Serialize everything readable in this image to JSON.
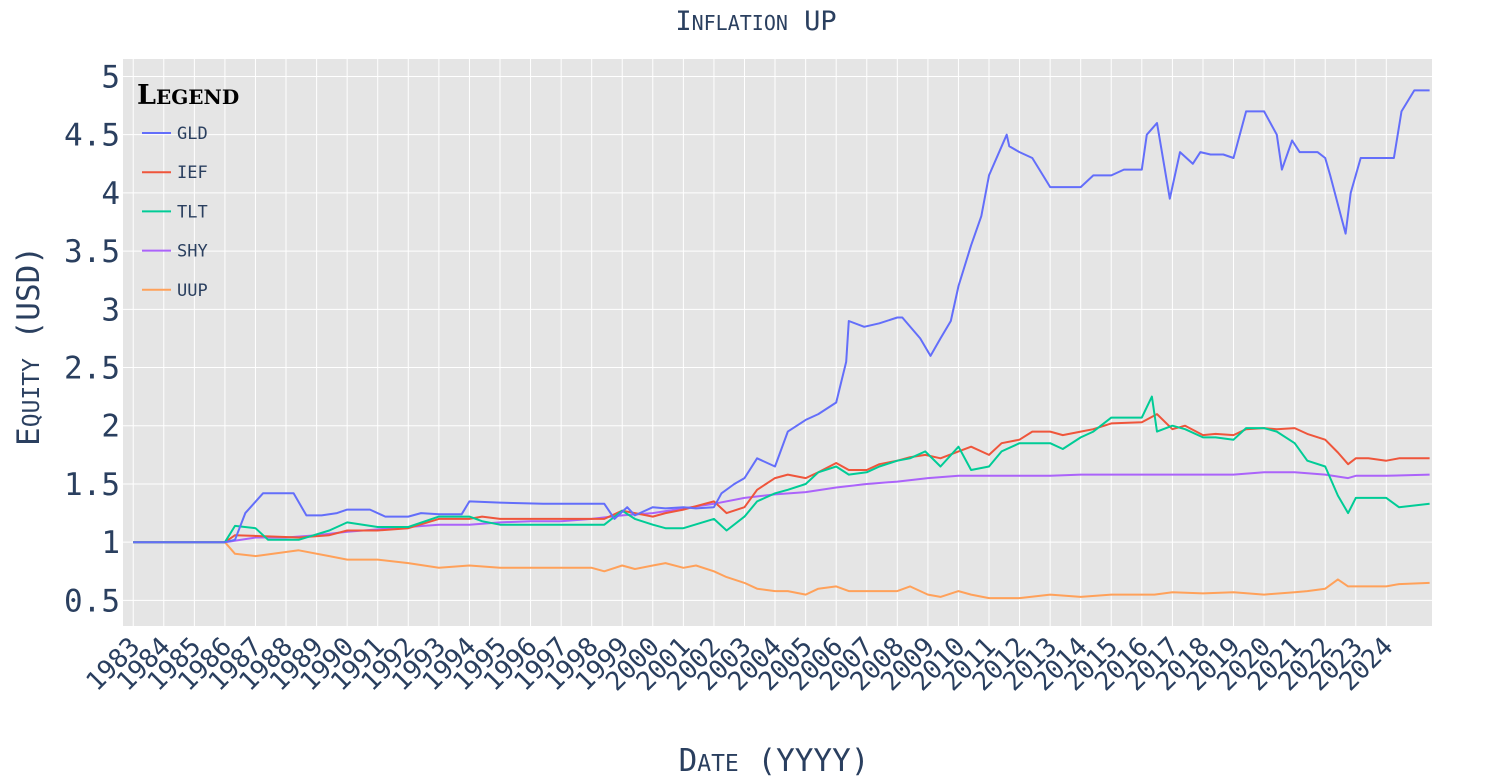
{
  "chart_data": {
    "type": "line",
    "title": "Inflation UP",
    "xlabel": "Date (YYYY)",
    "ylabel": "Equity (USD)",
    "legend_title": "Legend",
    "legend_position": "top-left",
    "grid": true,
    "xlim": [
      "1982-09-01",
      "2025-06-30"
    ],
    "ylim": [
      0.28,
      5.15
    ],
    "y_ticks": [
      "0.5",
      "1",
      "1.5",
      "2",
      "2.5",
      "3",
      "3.5",
      "4",
      "4.5",
      "5"
    ],
    "x_ticks": [
      "1983",
      "1984",
      "1985",
      "1986",
      "1987",
      "1988",
      "1989",
      "1990",
      "1991",
      "1992",
      "1993",
      "1994",
      "1995",
      "1996",
      "1997",
      "1998",
      "1999",
      "2000",
      "2001",
      "2002",
      "2003",
      "2004",
      "2005",
      "2006",
      "2007",
      "2008",
      "2009",
      "2010",
      "2011",
      "2012",
      "2013",
      "2014",
      "2015",
      "2016",
      "2017",
      "2018",
      "2019",
      "2020",
      "2021",
      "2022",
      "2023",
      "2024"
    ],
    "series": [
      {
        "name": "GLD",
        "color": "#636efa",
        "x": [
          "1983-01-01",
          "1986-01-01",
          "1986-05-01",
          "1986-09-01",
          "1987-04-01",
          "1988-04-01",
          "1988-09-01",
          "1989-03-01",
          "1989-09-01",
          "1990-01-01",
          "1990-10-01",
          "1991-04-01",
          "1992-01-01",
          "1992-06-01",
          "1993-01-01",
          "1993-10-01",
          "1994-01-01",
          "1995-01-01",
          "1996-06-01",
          "1998-06-01",
          "1998-10-01",
          "1999-03-01",
          "1999-06-01",
          "2000-01-01",
          "2000-06-01",
          "2001-01-01",
          "2001-06-01",
          "2002-01-01",
          "2002-04-01",
          "2002-09-01",
          "2003-01-01",
          "2003-06-01",
          "2004-01-01",
          "2004-06-01",
          "2005-01-01",
          "2005-06-01",
          "2006-01-01",
          "2006-05-01",
          "2006-06-01",
          "2006-12-01",
          "2007-06-01",
          "2008-01-01",
          "2008-03-01",
          "2008-10-01",
          "2009-02-01",
          "2009-06-01",
          "2009-10-01",
          "2010-01-01",
          "2010-06-01",
          "2010-10-01",
          "2011-01-01",
          "2011-08-01",
          "2011-09-01",
          "2012-01-01",
          "2012-06-01",
          "2013-01-01",
          "2013-06-01",
          "2014-01-01",
          "2014-06-01",
          "2015-01-01",
          "2015-06-01",
          "2016-01-01",
          "2016-03-01",
          "2016-07-01",
          "2016-12-01",
          "2017-04-01",
          "2017-09-01",
          "2017-12-01",
          "2018-04-01",
          "2018-09-01",
          "2019-01-01",
          "2019-06-01",
          "2020-01-01",
          "2020-06-01",
          "2020-08-01",
          "2020-12-01",
          "2021-03-01",
          "2021-06-01",
          "2021-10-01",
          "2022-01-01",
          "2022-03-01",
          "2022-09-01",
          "2022-11-01",
          "2023-03-01",
          "2023-06-01",
          "2023-12-01",
          "2024-04-01",
          "2024-07-01",
          "2024-12-01",
          "2025-06-01"
        ],
        "y": [
          1.0,
          1.0,
          1.02,
          1.25,
          1.42,
          1.42,
          1.23,
          1.23,
          1.25,
          1.28,
          1.28,
          1.22,
          1.22,
          1.25,
          1.24,
          1.24,
          1.35,
          1.34,
          1.33,
          1.33,
          1.2,
          1.3,
          1.23,
          1.3,
          1.29,
          1.3,
          1.29,
          1.3,
          1.42,
          1.5,
          1.55,
          1.72,
          1.65,
          1.95,
          2.05,
          2.1,
          2.2,
          2.55,
          2.9,
          2.85,
          2.88,
          2.93,
          2.93,
          2.75,
          2.6,
          2.75,
          2.9,
          3.2,
          3.55,
          3.8,
          4.15,
          4.5,
          4.4,
          4.35,
          4.3,
          4.05,
          4.05,
          4.05,
          4.15,
          4.15,
          4.2,
          4.2,
          4.5,
          4.6,
          3.95,
          4.35,
          4.25,
          4.35,
          4.33,
          4.33,
          4.3,
          4.7,
          4.7,
          4.5,
          4.2,
          4.45,
          4.35,
          4.35,
          4.35,
          4.3,
          4.15,
          3.65,
          4.0,
          4.3,
          4.3,
          4.3,
          4.3,
          4.7,
          4.88,
          4.88
        ]
      },
      {
        "name": "IEF",
        "color": "#ef553b",
        "x": [
          "1983-01-01",
          "1986-01-01",
          "1986-05-01",
          "1987-06-01",
          "1988-06-01",
          "1989-06-01",
          "1990-01-01",
          "1991-01-01",
          "1992-01-01",
          "1993-01-01",
          "1994-01-01",
          "1994-06-01",
          "1995-01-01",
          "1996-01-01",
          "1997-01-01",
          "1998-01-01",
          "1998-06-01",
          "1999-01-01",
          "1999-06-01",
          "2000-01-01",
          "2000-06-01",
          "2001-01-01",
          "2002-01-01",
          "2002-06-01",
          "2003-01-01",
          "2003-06-01",
          "2004-01-01",
          "2004-06-01",
          "2005-01-01",
          "2005-06-01",
          "2006-01-01",
          "2006-06-01",
          "2007-01-01",
          "2007-06-01",
          "2008-01-01",
          "2008-06-01",
          "2008-12-01",
          "2009-06-01",
          "2010-01-01",
          "2010-06-01",
          "2011-01-01",
          "2011-06-01",
          "2012-01-01",
          "2012-06-01",
          "2013-01-01",
          "2013-06-01",
          "2014-01-01",
          "2014-06-01",
          "2015-01-01",
          "2016-01-01",
          "2016-07-01",
          "2017-01-01",
          "2017-06-01",
          "2018-01-01",
          "2018-06-01",
          "2019-01-01",
          "2019-06-01",
          "2020-01-01",
          "2020-06-01",
          "2021-01-01",
          "2021-06-01",
          "2022-01-01",
          "2022-06-01",
          "2022-10-01",
          "2023-01-01",
          "2023-06-01",
          "2024-01-01",
          "2024-06-01",
          "2025-06-01"
        ],
        "y": [
          1.0,
          1.0,
          1.06,
          1.05,
          1.04,
          1.06,
          1.1,
          1.1,
          1.12,
          1.2,
          1.2,
          1.22,
          1.2,
          1.2,
          1.2,
          1.2,
          1.2,
          1.27,
          1.25,
          1.22,
          1.25,
          1.28,
          1.35,
          1.25,
          1.3,
          1.45,
          1.55,
          1.58,
          1.55,
          1.6,
          1.68,
          1.62,
          1.62,
          1.67,
          1.7,
          1.73,
          1.75,
          1.72,
          1.78,
          1.82,
          1.75,
          1.85,
          1.88,
          1.95,
          1.95,
          1.92,
          1.95,
          1.97,
          2.02,
          2.03,
          2.1,
          1.97,
          2.0,
          1.92,
          1.93,
          1.92,
          1.97,
          1.98,
          1.97,
          1.98,
          1.93,
          1.88,
          1.77,
          1.67,
          1.72,
          1.72,
          1.7,
          1.72,
          1.72
        ]
      },
      {
        "name": "TLT",
        "color": "#00cc96",
        "x": [
          "1983-01-01",
          "1986-01-01",
          "1986-05-01",
          "1987-01-01",
          "1987-06-01",
          "1988-06-01",
          "1989-06-01",
          "1990-01-01",
          "1991-01-01",
          "1992-01-01",
          "1993-01-01",
          "1994-01-01",
          "1994-06-01",
          "1995-01-01",
          "1996-01-01",
          "1997-01-01",
          "1998-01-01",
          "1998-06-01",
          "1999-01-01",
          "1999-06-01",
          "2000-01-01",
          "2000-06-01",
          "2001-01-01",
          "2002-01-01",
          "2002-06-01",
          "2003-01-01",
          "2003-06-01",
          "2004-01-01",
          "2004-06-01",
          "2005-01-01",
          "2005-06-01",
          "2006-01-01",
          "2006-06-01",
          "2007-01-01",
          "2007-06-01",
          "2008-01-01",
          "2008-06-01",
          "2008-12-01",
          "2009-06-01",
          "2010-01-01",
          "2010-06-01",
          "2011-01-01",
          "2011-06-01",
          "2012-01-01",
          "2012-06-01",
          "2013-01-01",
          "2013-06-01",
          "2014-01-01",
          "2014-06-01",
          "2015-01-01",
          "2016-01-01",
          "2016-05-01",
          "2016-07-01",
          "2017-01-01",
          "2017-06-01",
          "2018-01-01",
          "2018-06-01",
          "2019-01-01",
          "2019-06-01",
          "2020-01-01",
          "2020-06-01",
          "2021-01-01",
          "2021-06-01",
          "2022-01-01",
          "2022-06-01",
          "2022-10-01",
          "2023-01-01",
          "2023-06-01",
          "2024-01-01",
          "2024-06-01",
          "2025-06-01"
        ],
        "y": [
          1.0,
          1.0,
          1.14,
          1.12,
          1.02,
          1.02,
          1.1,
          1.17,
          1.13,
          1.13,
          1.22,
          1.22,
          1.18,
          1.15,
          1.15,
          1.15,
          1.15,
          1.15,
          1.27,
          1.2,
          1.15,
          1.12,
          1.12,
          1.2,
          1.1,
          1.22,
          1.35,
          1.42,
          1.45,
          1.5,
          1.6,
          1.65,
          1.58,
          1.6,
          1.65,
          1.7,
          1.72,
          1.78,
          1.65,
          1.82,
          1.62,
          1.65,
          1.78,
          1.85,
          1.85,
          1.85,
          1.8,
          1.9,
          1.95,
          2.07,
          2.07,
          2.25,
          1.95,
          2.0,
          1.97,
          1.9,
          1.9,
          1.88,
          1.98,
          1.98,
          1.95,
          1.85,
          1.7,
          1.65,
          1.4,
          1.25,
          1.38,
          1.38,
          1.38,
          1.3,
          1.33
        ]
      },
      {
        "name": "SHY",
        "color": "#ab63fa",
        "x": [
          "1983-01-01",
          "1986-01-01",
          "1987-01-01",
          "1988-01-01",
          "1989-01-01",
          "1990-01-01",
          "1991-01-01",
          "1992-01-01",
          "1993-01-01",
          "1994-01-01",
          "1995-01-01",
          "1996-01-01",
          "1997-01-01",
          "1998-01-01",
          "1999-01-01",
          "2000-01-01",
          "2001-01-01",
          "2002-01-01",
          "2003-01-01",
          "2004-01-01",
          "2005-01-01",
          "2006-01-01",
          "2007-01-01",
          "2008-01-01",
          "2009-01-01",
          "2010-01-01",
          "2011-01-01",
          "2012-01-01",
          "2013-01-01",
          "2014-01-01",
          "2015-01-01",
          "2016-01-01",
          "2017-01-01",
          "2018-01-01",
          "2019-01-01",
          "2020-01-01",
          "2021-01-01",
          "2022-01-01",
          "2022-10-01",
          "2023-01-01",
          "2024-01-01",
          "2025-06-01"
        ],
        "y": [
          1.0,
          1.0,
          1.04,
          1.04,
          1.06,
          1.09,
          1.11,
          1.13,
          1.15,
          1.15,
          1.17,
          1.18,
          1.18,
          1.2,
          1.23,
          1.25,
          1.29,
          1.33,
          1.38,
          1.41,
          1.43,
          1.47,
          1.5,
          1.52,
          1.55,
          1.57,
          1.57,
          1.57,
          1.57,
          1.58,
          1.58,
          1.58,
          1.58,
          1.58,
          1.58,
          1.6,
          1.6,
          1.58,
          1.55,
          1.57,
          1.57,
          1.58
        ]
      },
      {
        "name": "UUP",
        "color": "#ffa15a",
        "x": [
          "1983-01-01",
          "1986-01-01",
          "1986-05-01",
          "1987-01-01",
          "1988-06-01",
          "1989-06-01",
          "1990-01-01",
          "1991-01-01",
          "1992-01-01",
          "1993-01-01",
          "1994-01-01",
          "1995-01-01",
          "1996-01-01",
          "1997-01-01",
          "1998-01-01",
          "1998-06-01",
          "1999-01-01",
          "1999-06-01",
          "2000-01-01",
          "2000-06-01",
          "2001-01-01",
          "2001-06-01",
          "2002-01-01",
          "2002-06-01",
          "2003-01-01",
          "2003-06-01",
          "2004-01-01",
          "2004-06-01",
          "2005-01-01",
          "2005-06-01",
          "2006-01-01",
          "2006-06-01",
          "2007-01-01",
          "2008-01-01",
          "2008-06-01",
          "2009-01-01",
          "2009-06-01",
          "2010-01-01",
          "2010-06-01",
          "2011-01-01",
          "2011-06-01",
          "2012-01-01",
          "2013-01-01",
          "2014-01-01",
          "2015-01-01",
          "2016-01-01",
          "2016-06-01",
          "2017-01-01",
          "2018-01-01",
          "2019-01-01",
          "2020-01-01",
          "2021-01-01",
          "2021-06-01",
          "2022-01-01",
          "2022-06-01",
          "2022-10-01",
          "2023-01-01",
          "2024-01-01",
          "2024-06-01",
          "2025-06-01"
        ],
        "y": [
          1.0,
          1.0,
          0.9,
          0.88,
          0.93,
          0.88,
          0.85,
          0.85,
          0.82,
          0.78,
          0.8,
          0.78,
          0.78,
          0.78,
          0.78,
          0.75,
          0.8,
          0.77,
          0.8,
          0.82,
          0.78,
          0.8,
          0.75,
          0.7,
          0.65,
          0.6,
          0.58,
          0.58,
          0.55,
          0.6,
          0.62,
          0.58,
          0.58,
          0.58,
          0.62,
          0.55,
          0.53,
          0.58,
          0.55,
          0.52,
          0.52,
          0.52,
          0.55,
          0.53,
          0.55,
          0.55,
          0.55,
          0.57,
          0.56,
          0.57,
          0.55,
          0.57,
          0.58,
          0.6,
          0.68,
          0.62,
          0.62,
          0.62,
          0.64,
          0.65
        ]
      }
    ]
  }
}
